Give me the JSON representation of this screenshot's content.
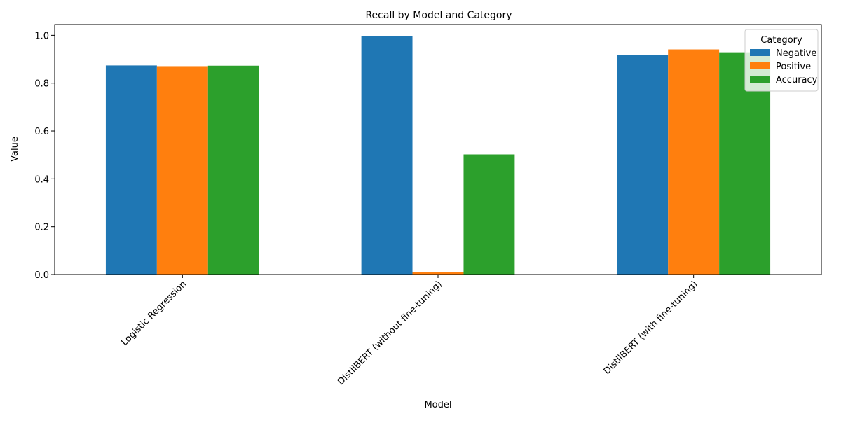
{
  "chart_data": {
    "type": "bar",
    "title": "Recall  by Model and Category",
    "xlabel": "Model",
    "ylabel": "Value",
    "categories": [
      "Logistic Regression",
      "DistilBERT (without fine-tuning)",
      "DistilBERT (with fine-tuning)"
    ],
    "series": [
      {
        "name": "Negative",
        "color": "#1f77b4",
        "values": [
          0.874,
          0.997,
          0.918
        ]
      },
      {
        "name": "Positive",
        "color": "#ff7f0e",
        "values": [
          0.871,
          0.009,
          0.941
        ]
      },
      {
        "name": "Accuracy",
        "color": "#2ca02c",
        "values": [
          0.873,
          0.502,
          0.929
        ]
      }
    ],
    "ylim": [
      0,
      1.045
    ],
    "yticks": [
      0.0,
      0.2,
      0.4,
      0.6,
      0.8,
      1.0
    ],
    "ytick_labels": [
      "0.0",
      "0.2",
      "0.4",
      "0.6",
      "0.8",
      "1.0"
    ],
    "legend": {
      "title": "Category",
      "placement": "top-right"
    },
    "grid": false
  }
}
